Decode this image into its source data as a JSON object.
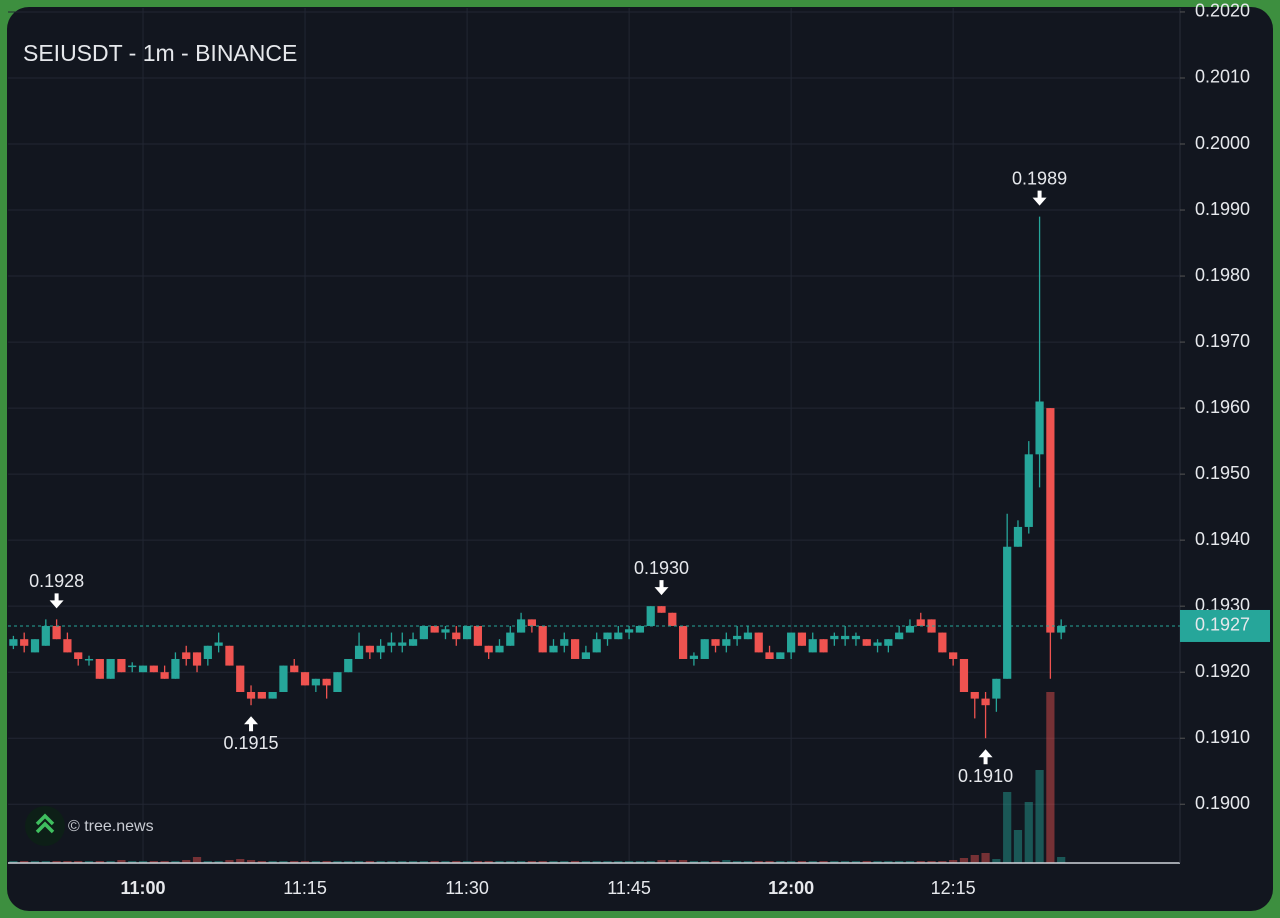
{
  "chart_data": {
    "type": "candlestick",
    "title": "SEIUSDT - 1m - BINANCE",
    "watermark": "© tree.news",
    "up_color": "#26a69a",
    "down_color": "#ef5350",
    "grid": true,
    "xlim": [
      647.5,
      756
    ],
    "xticks": [
      {
        "value": 660,
        "label": "11:00"
      },
      {
        "value": 675,
        "label": "11:15"
      },
      {
        "value": 690,
        "label": "11:30"
      },
      {
        "value": 705,
        "label": "11:45"
      },
      {
        "value": 720,
        "label": "12:00"
      },
      {
        "value": 735,
        "label": "12:15"
      }
    ],
    "ylim": [
      0.18911,
      0.20206
    ],
    "yticks": [
      {
        "value": 0.19,
        "label": "0.1900"
      },
      {
        "value": 0.191,
        "label": "0.1910"
      },
      {
        "value": 0.192,
        "label": "0.1920"
      },
      {
        "value": 0.193,
        "label": "0.1930"
      },
      {
        "value": 0.194,
        "label": "0.1940"
      },
      {
        "value": 0.195,
        "label": "0.1950"
      },
      {
        "value": 0.196,
        "label": "0.1960"
      },
      {
        "value": 0.197,
        "label": "0.1970"
      },
      {
        "value": 0.198,
        "label": "0.1980"
      },
      {
        "value": 0.199,
        "label": "0.1990"
      },
      {
        "value": 0.2,
        "label": "0.2000"
      },
      {
        "value": 0.201,
        "label": "0.2010"
      },
      {
        "value": 0.202,
        "label": "0.2020"
      }
    ],
    "x": [
      648,
      649,
      650,
      651,
      652,
      653,
      654,
      655,
      656,
      657,
      658,
      659,
      660,
      661,
      662,
      663,
      664,
      665,
      666,
      667,
      668,
      669,
      670,
      671,
      672,
      673,
      674,
      675,
      676,
      677,
      678,
      679,
      680,
      681,
      682,
      683,
      684,
      685,
      686,
      687,
      688,
      689,
      690,
      691,
      692,
      693,
      694,
      695,
      696,
      697,
      698,
      699,
      700,
      701,
      702,
      703,
      704,
      705,
      706,
      707,
      708,
      709,
      710,
      711,
      712,
      713,
      714,
      715,
      716,
      717,
      718,
      719,
      720,
      721,
      722,
      723,
      724,
      725,
      726,
      727,
      728,
      729,
      730,
      731,
      732,
      733,
      734,
      735,
      736,
      737,
      738,
      739,
      740,
      741,
      742,
      743,
      744,
      745
    ],
    "ohlc": [
      [
        0.1924,
        0.19255,
        0.19235,
        0.1925
      ],
      [
        0.1925,
        0.1926,
        0.1923,
        0.1924
      ],
      [
        0.1923,
        0.1925,
        0.1923,
        0.1925
      ],
      [
        0.1924,
        0.1928,
        0.1924,
        0.1927
      ],
      [
        0.1927,
        0.1928,
        0.1925,
        0.1925
      ],
      [
        0.1925,
        0.1926,
        0.1923,
        0.1923
      ],
      [
        0.1923,
        0.1923,
        0.1921,
        0.1922
      ],
      [
        0.1922,
        0.19225,
        0.1921,
        0.1922
      ],
      [
        0.1922,
        0.1922,
        0.1919,
        0.1919
      ],
      [
        0.1919,
        0.1922,
        0.1919,
        0.1922
      ],
      [
        0.1922,
        0.1922,
        0.192,
        0.192
      ],
      [
        0.1921,
        0.19215,
        0.192,
        0.1921
      ],
      [
        0.192,
        0.1921,
        0.192,
        0.1921
      ],
      [
        0.1921,
        0.1921,
        0.192,
        0.192
      ],
      [
        0.192,
        0.1921,
        0.1919,
        0.1919
      ],
      [
        0.1919,
        0.1923,
        0.1919,
        0.1922
      ],
      [
        0.1923,
        0.1924,
        0.1921,
        0.1922
      ],
      [
        0.1923,
        0.1923,
        0.192,
        0.1921
      ],
      [
        0.1922,
        0.1924,
        0.1921,
        0.1924
      ],
      [
        0.1924,
        0.1926,
        0.1923,
        0.19245
      ],
      [
        0.1924,
        0.1924,
        0.1921,
        0.1921
      ],
      [
        0.1921,
        0.1921,
        0.1917,
        0.1917
      ],
      [
        0.1917,
        0.1918,
        0.1915,
        0.1916
      ],
      [
        0.1917,
        0.1917,
        0.1916,
        0.1916
      ],
      [
        0.1916,
        0.1917,
        0.1916,
        0.1917
      ],
      [
        0.1917,
        0.1921,
        0.1917,
        0.1921
      ],
      [
        0.1921,
        0.1922,
        0.192,
        0.192
      ],
      [
        0.192,
        0.192,
        0.1918,
        0.1918
      ],
      [
        0.1918,
        0.1919,
        0.1917,
        0.1919
      ],
      [
        0.1919,
        0.1919,
        0.1916,
        0.1918
      ],
      [
        0.1917,
        0.192,
        0.1917,
        0.192
      ],
      [
        0.192,
        0.1922,
        0.192,
        0.1922
      ],
      [
        0.1922,
        0.1926,
        0.1922,
        0.1924
      ],
      [
        0.1924,
        0.1924,
        0.1922,
        0.1923
      ],
      [
        0.1923,
        0.1925,
        0.1922,
        0.1924
      ],
      [
        0.1924,
        0.1926,
        0.1923,
        0.19245
      ],
      [
        0.1924,
        0.1926,
        0.1923,
        0.19245
      ],
      [
        0.1924,
        0.1926,
        0.1924,
        0.1925
      ],
      [
        0.1925,
        0.1927,
        0.1925,
        0.1927
      ],
      [
        0.1927,
        0.1927,
        0.1926,
        0.1926
      ],
      [
        0.1926,
        0.1927,
        0.1925,
        0.19265
      ],
      [
        0.1926,
        0.1927,
        0.1924,
        0.1925
      ],
      [
        0.1925,
        0.1927,
        0.1925,
        0.1927
      ],
      [
        0.1927,
        0.1927,
        0.1924,
        0.1924
      ],
      [
        0.1924,
        0.1924,
        0.1922,
        0.1923
      ],
      [
        0.1923,
        0.1925,
        0.1923,
        0.1924
      ],
      [
        0.1924,
        0.1927,
        0.1924,
        0.1926
      ],
      [
        0.1926,
        0.1929,
        0.1926,
        0.1928
      ],
      [
        0.1928,
        0.1928,
        0.1926,
        0.1927
      ],
      [
        0.1927,
        0.1927,
        0.1923,
        0.1923
      ],
      [
        0.1923,
        0.1925,
        0.1923,
        0.1924
      ],
      [
        0.1924,
        0.1926,
        0.1923,
        0.1925
      ],
      [
        0.1925,
        0.1925,
        0.1922,
        0.1922
      ],
      [
        0.1922,
        0.1924,
        0.1922,
        0.1923
      ],
      [
        0.1923,
        0.1926,
        0.1923,
        0.1925
      ],
      [
        0.1925,
        0.1926,
        0.1924,
        0.1926
      ],
      [
        0.1925,
        0.1927,
        0.1925,
        0.1926
      ],
      [
        0.1926,
        0.1927,
        0.1925,
        0.19265
      ],
      [
        0.1926,
        0.1927,
        0.1926,
        0.1927
      ],
      [
        0.1927,
        0.193,
        0.1927,
        0.193
      ],
      [
        0.193,
        0.193,
        0.1929,
        0.1929
      ],
      [
        0.1929,
        0.1929,
        0.1927,
        0.1927
      ],
      [
        0.1927,
        0.1927,
        0.1922,
        0.1922
      ],
      [
        0.1922,
        0.1923,
        0.1921,
        0.19225
      ],
      [
        0.1922,
        0.1925,
        0.1922,
        0.1925
      ],
      [
        0.1925,
        0.1925,
        0.1923,
        0.1924
      ],
      [
        0.1924,
        0.1926,
        0.1923,
        0.1925
      ],
      [
        0.1925,
        0.1927,
        0.1924,
        0.19255
      ],
      [
        0.1925,
        0.1927,
        0.1925,
        0.1926
      ],
      [
        0.1926,
        0.1926,
        0.1923,
        0.1923
      ],
      [
        0.1923,
        0.1924,
        0.1922,
        0.1922
      ],
      [
        0.1922,
        0.1923,
        0.1922,
        0.1923
      ],
      [
        0.1923,
        0.1926,
        0.1922,
        0.1926
      ],
      [
        0.1926,
        0.1926,
        0.1924,
        0.1924
      ],
      [
        0.1923,
        0.1926,
        0.1923,
        0.1925
      ],
      [
        0.1925,
        0.1925,
        0.1923,
        0.1923
      ],
      [
        0.1925,
        0.1926,
        0.1924,
        0.19255
      ],
      [
        0.1925,
        0.1927,
        0.1924,
        0.19255
      ],
      [
        0.1925,
        0.1926,
        0.1924,
        0.19255
      ],
      [
        0.1925,
        0.1925,
        0.1924,
        0.1924
      ],
      [
        0.1924,
        0.1925,
        0.1923,
        0.19245
      ],
      [
        0.1924,
        0.1925,
        0.1923,
        0.1925
      ],
      [
        0.1925,
        0.1927,
        0.1925,
        0.1926
      ],
      [
        0.1926,
        0.1928,
        0.1926,
        0.1927
      ],
      [
        0.1928,
        0.1929,
        0.1927,
        0.1927
      ],
      [
        0.1928,
        0.1928,
        0.1926,
        0.1926
      ],
      [
        0.1926,
        0.1926,
        0.1923,
        0.1923
      ],
      [
        0.1923,
        0.1923,
        0.1921,
        0.1922
      ],
      [
        0.1922,
        0.1922,
        0.1917,
        0.1917
      ],
      [
        0.1917,
        0.1917,
        0.1913,
        0.1916
      ],
      [
        0.1916,
        0.1917,
        0.191,
        0.1915
      ],
      [
        0.1916,
        0.1919,
        0.1914,
        0.1919
      ],
      [
        0.1919,
        0.1944,
        0.1919,
        0.1939
      ],
      [
        0.1939,
        0.1943,
        0.1939,
        0.1942
      ],
      [
        0.1942,
        0.1955,
        0.1941,
        0.1953
      ],
      [
        0.1953,
        0.1989,
        0.1948,
        0.1961
      ],
      [
        0.196,
        0.196,
        0.1919,
        0.1926
      ],
      [
        0.1926,
        0.1928,
        0.1925,
        0.1927
      ]
    ],
    "volume": [
      2,
      2,
      2,
      2,
      2,
      2,
      2,
      2,
      2,
      2,
      3,
      2,
      2,
      2,
      2,
      2,
      3,
      6,
      2,
      2,
      3,
      4,
      3,
      2,
      2,
      2,
      2,
      2,
      2,
      2,
      2,
      2,
      2,
      2,
      2,
      2,
      2,
      2,
      2,
      2,
      2,
      2,
      2,
      2,
      2,
      2,
      2,
      2,
      2,
      2,
      2,
      2,
      2,
      2,
      2,
      2,
      2,
      2,
      2,
      2,
      3,
      3,
      3,
      2,
      2,
      2,
      3,
      2,
      2,
      2,
      2,
      2,
      2,
      2,
      2,
      2,
      2,
      2,
      2,
      2,
      2,
      2,
      2,
      2,
      2,
      2,
      2,
      3,
      5,
      8,
      10,
      4,
      71,
      33,
      61,
      93,
      171,
      6
    ],
    "annotations": [
      {
        "x": 652,
        "value": 0.1928,
        "label": "0.1928",
        "dir": "down"
      },
      {
        "x": 670,
        "value": 0.1915,
        "label": "0.1915",
        "dir": "up"
      },
      {
        "x": 708,
        "value": 0.193,
        "label": "0.1930",
        "dir": "down"
      },
      {
        "x": 738,
        "value": 0.191,
        "label": "0.1910",
        "dir": "up"
      },
      {
        "x": 743,
        "value": 0.1989,
        "label": "0.1989",
        "dir": "down"
      }
    ],
    "last_price": {
      "value": 0.1927,
      "label": "0.1927"
    }
  }
}
